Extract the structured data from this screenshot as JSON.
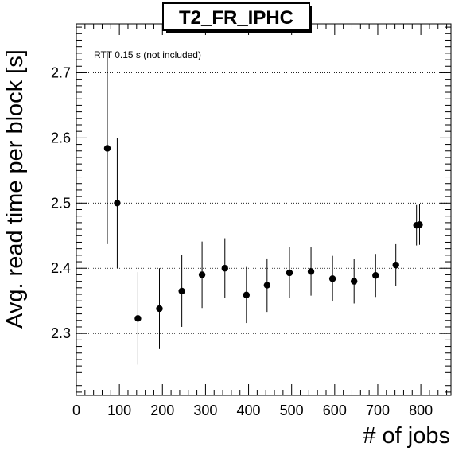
{
  "chart_data": {
    "type": "scatter",
    "title": "T2_FR_IPHC",
    "annotation": "RTT 0.15 s (not included)",
    "xlabel": "# of jobs",
    "ylabel": "Avg. read time per block [s]",
    "xlim": [
      0,
      870
    ],
    "ylim": [
      2.205,
      2.775
    ],
    "xticks": [
      0,
      100,
      200,
      300,
      400,
      500,
      600,
      700,
      800
    ],
    "xtick_labels": [
      "0",
      "100",
      "200",
      "300",
      "400",
      "500",
      "600",
      "700",
      "800"
    ],
    "yticks": [
      2.3,
      2.4,
      2.5,
      2.6,
      2.7
    ],
    "ytick_labels": [
      "2.3",
      "2.4",
      "2.5",
      "2.6",
      "2.7"
    ],
    "grid": "horizontal dotted",
    "colors": {
      "marker": "#000000",
      "axes": "#000000",
      "background": "#ffffff"
    },
    "series": [
      {
        "points": [
          {
            "x": 72,
            "y": 2.584,
            "err": 0.147
          },
          {
            "x": 95,
            "y": 2.5,
            "err": 0.1
          },
          {
            "x": 143,
            "y": 2.323,
            "err": 0.071
          },
          {
            "x": 193,
            "y": 2.338,
            "err": 0.062
          },
          {
            "x": 245,
            "y": 2.365,
            "err": 0.055
          },
          {
            "x": 292,
            "y": 2.39,
            "err": 0.051
          },
          {
            "x": 345,
            "y": 2.4,
            "err": 0.046
          },
          {
            "x": 395,
            "y": 2.359,
            "err": 0.043
          },
          {
            "x": 443,
            "y": 2.374,
            "err": 0.041
          },
          {
            "x": 495,
            "y": 2.393,
            "err": 0.039
          },
          {
            "x": 545,
            "y": 2.395,
            "err": 0.037
          },
          {
            "x": 595,
            "y": 2.384,
            "err": 0.035
          },
          {
            "x": 645,
            "y": 2.38,
            "err": 0.034
          },
          {
            "x": 695,
            "y": 2.389,
            "err": 0.033
          },
          {
            "x": 742,
            "y": 2.405,
            "err": 0.032
          },
          {
            "x": 790,
            "y": 2.466,
            "err": 0.031
          },
          {
            "x": 797,
            "y": 2.467,
            "err": 0.031
          }
        ]
      }
    ]
  }
}
